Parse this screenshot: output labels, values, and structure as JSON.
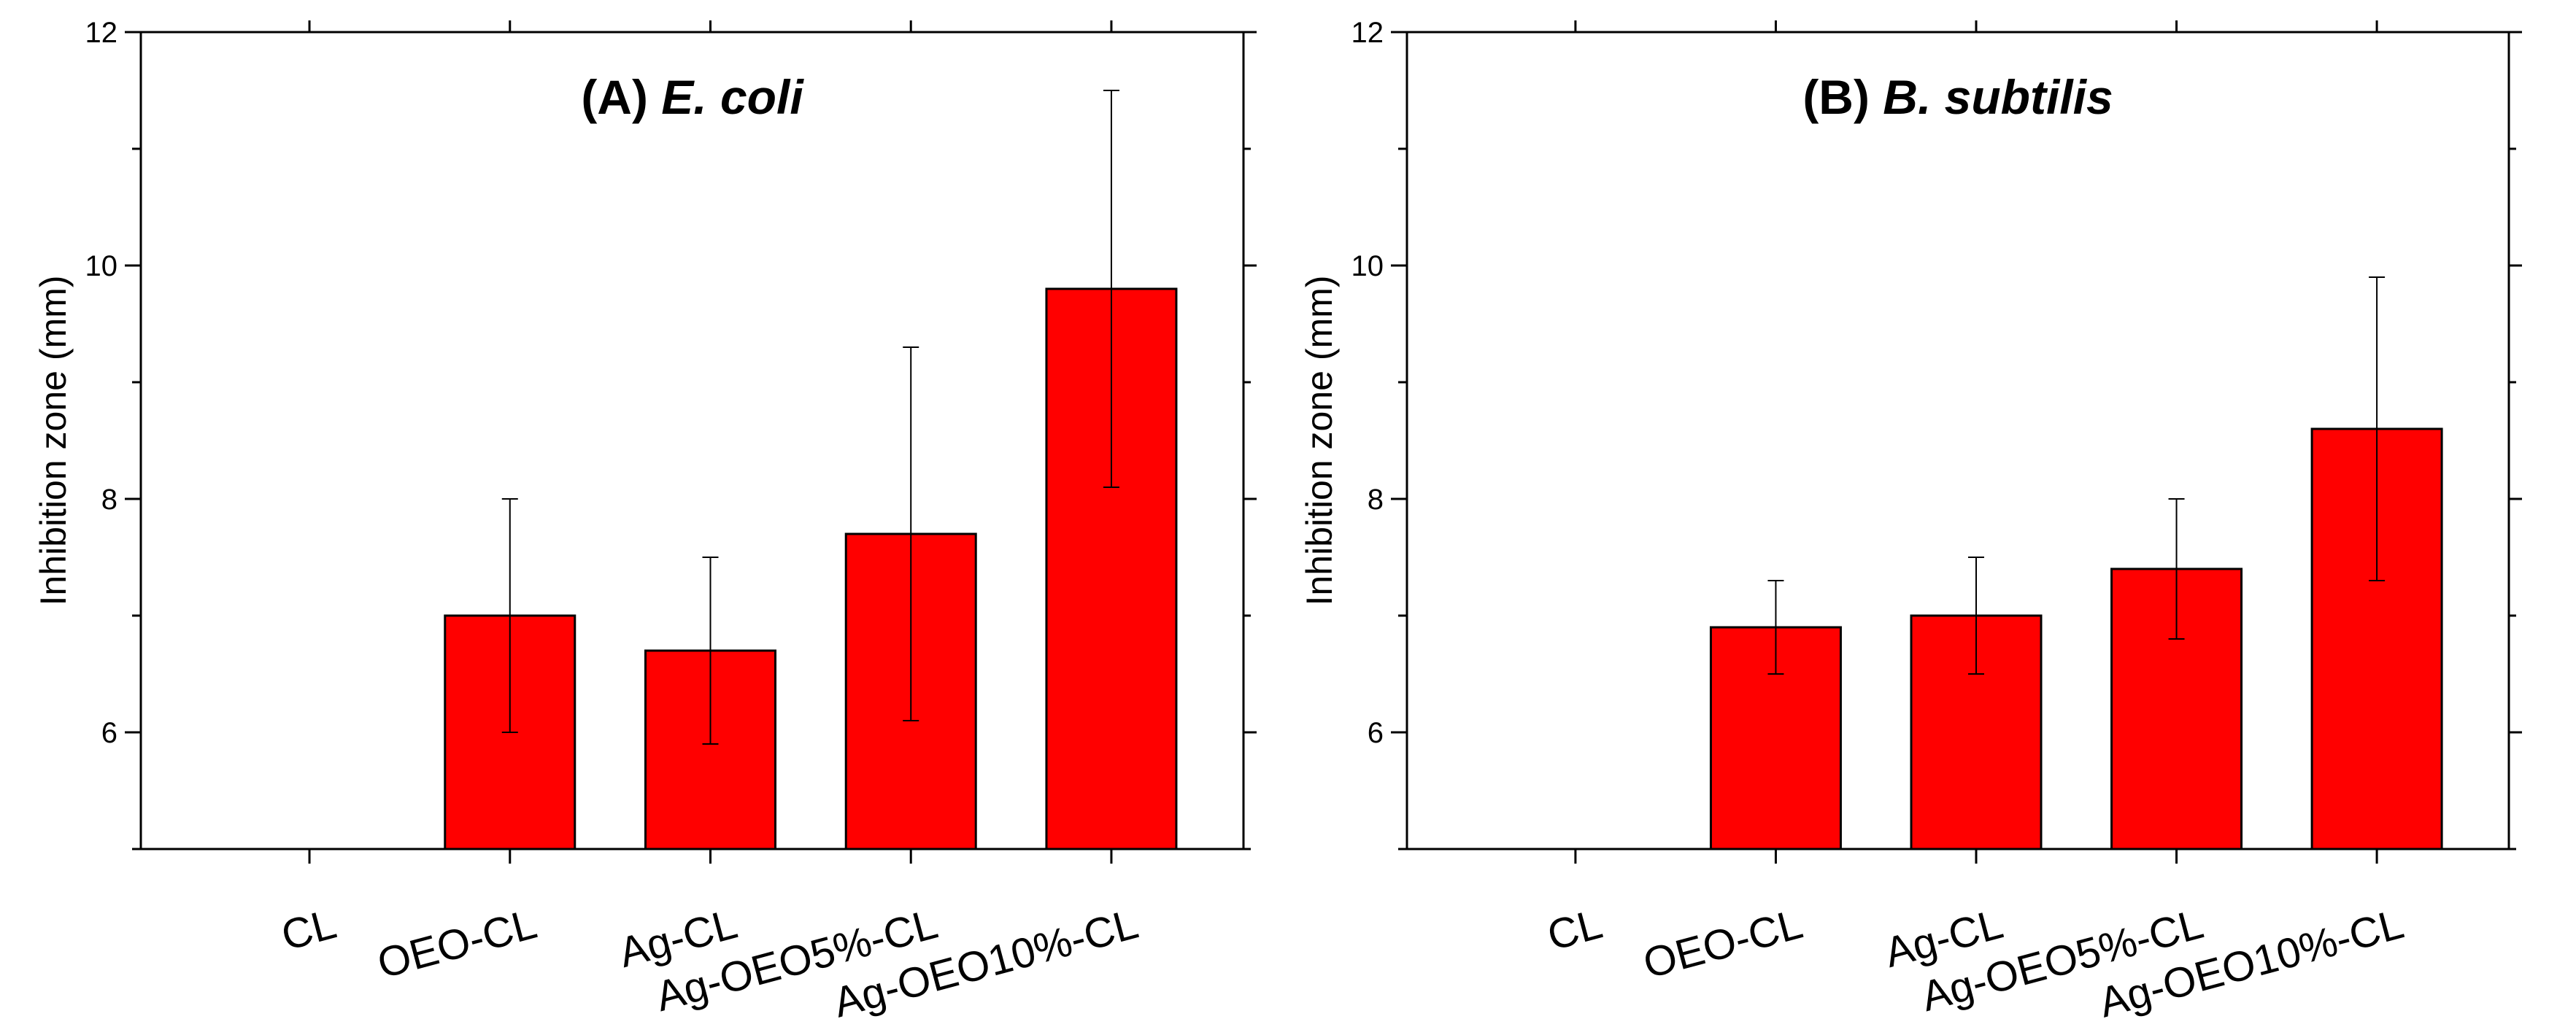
{
  "chart_data": [
    {
      "type": "bar",
      "title_prefix": "(A)",
      "title_organism": "E. coli",
      "ylabel": "Inhibition zone (mm)",
      "xlabel": "",
      "ylim": [
        5,
        12
      ],
      "yticks": [
        6,
        8,
        10,
        12
      ],
      "categories": [
        "CL",
        "OEO-CL",
        "Ag-CL",
        "Ag-OEO5%-CL",
        "Ag-OEO10%-CL"
      ],
      "values": [
        null,
        7.0,
        6.7,
        7.7,
        9.8
      ],
      "error_lower": [
        null,
        6.0,
        5.9,
        6.1,
        8.1
      ],
      "error_upper": [
        null,
        8.0,
        7.5,
        9.3,
        11.5
      ],
      "bar_color": "#ff0000"
    },
    {
      "type": "bar",
      "title_prefix": "(B)",
      "title_organism": "B. subtilis",
      "ylabel": "Inhibition zone (mm)",
      "xlabel": "",
      "ylim": [
        5,
        12
      ],
      "yticks": [
        6,
        8,
        10,
        12
      ],
      "categories": [
        "CL",
        "OEO-CL",
        "Ag-CL",
        "Ag-OEO5%-CL",
        "Ag-OEO10%-CL"
      ],
      "values": [
        null,
        6.9,
        7.0,
        7.4,
        8.6
      ],
      "error_lower": [
        null,
        6.5,
        6.5,
        6.8,
        7.3
      ],
      "error_upper": [
        null,
        7.3,
        7.5,
        8.0,
        9.9
      ],
      "bar_color": "#ff0000"
    }
  ]
}
